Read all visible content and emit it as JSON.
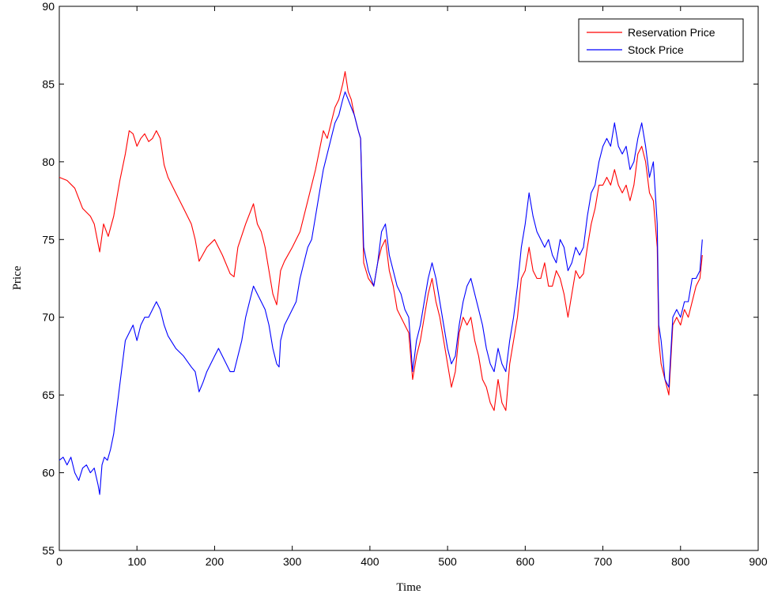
{
  "chart_data": {
    "type": "line",
    "title": "",
    "xlabel": "Time",
    "ylabel": "Price",
    "xlim": [
      0,
      900
    ],
    "ylim": [
      55,
      90
    ],
    "xticks": [
      0,
      100,
      200,
      300,
      400,
      500,
      600,
      700,
      800,
      900
    ],
    "yticks": [
      55,
      60,
      65,
      70,
      75,
      80,
      85,
      90
    ],
    "xtick_labels": [
      "0",
      "100",
      "200",
      "300",
      "400",
      "500",
      "600",
      "700",
      "800",
      "900"
    ],
    "ytick_labels": [
      "55",
      "60",
      "65",
      "70",
      "75",
      "80",
      "85",
      "90"
    ],
    "grid": false,
    "legend_position": "top-right",
    "series": [
      {
        "name": "Reservation Price",
        "color": "#ff0000",
        "x": [
          0,
          10,
          20,
          30,
          40,
          45,
          52,
          57,
          63,
          70,
          78,
          85,
          90,
          95,
          100,
          105,
          110,
          115,
          120,
          125,
          130,
          135,
          140,
          150,
          160,
          170,
          175,
          180,
          190,
          200,
          210,
          220,
          225,
          230,
          240,
          250,
          255,
          260,
          265,
          270,
          275,
          280,
          285,
          290,
          300,
          310,
          320,
          330,
          340,
          345,
          350,
          355,
          360,
          365,
          368,
          372,
          376,
          380,
          385,
          388,
          392,
          398,
          405,
          410,
          415,
          420,
          425,
          430,
          435,
          440,
          445,
          450,
          455,
          460,
          465,
          470,
          475,
          480,
          485,
          490,
          495,
          500,
          505,
          510,
          515,
          520,
          525,
          530,
          535,
          540,
          545,
          550,
          555,
          560,
          565,
          570,
          575,
          580,
          585,
          590,
          595,
          600,
          605,
          610,
          615,
          620,
          625,
          630,
          635,
          640,
          645,
          650,
          655,
          660,
          665,
          670,
          675,
          680,
          685,
          690,
          695,
          700,
          705,
          710,
          715,
          720,
          725,
          730,
          735,
          740,
          745,
          750,
          755,
          760,
          765,
          770,
          772,
          775,
          780,
          785,
          790,
          795,
          800,
          805,
          810,
          815,
          820,
          825,
          828
        ],
        "y": [
          79.0,
          78.8,
          78.3,
          77.0,
          76.5,
          76.0,
          74.2,
          76.0,
          75.2,
          76.5,
          78.8,
          80.5,
          82.0,
          81.8,
          81.0,
          81.5,
          81.8,
          81.3,
          81.5,
          82.0,
          81.5,
          79.8,
          79.0,
          78.0,
          77.0,
          76.0,
          75.0,
          73.6,
          74.5,
          75.0,
          74.0,
          72.8,
          72.6,
          74.5,
          76.0,
          77.3,
          76.0,
          75.5,
          74.5,
          73.0,
          71.5,
          70.8,
          73.0,
          73.6,
          74.5,
          75.5,
          77.5,
          79.5,
          82.0,
          81.5,
          82.5,
          83.5,
          84.0,
          85.0,
          85.8,
          84.5,
          84.0,
          83.0,
          82.0,
          81.5,
          73.5,
          72.5,
          72.0,
          73.5,
          74.5,
          75.0,
          73.0,
          72.0,
          70.5,
          70.0,
          69.5,
          69.0,
          66.0,
          67.5,
          68.5,
          70.0,
          71.5,
          72.5,
          71.0,
          70.0,
          68.5,
          67.0,
          65.5,
          66.5,
          69.0,
          70.0,
          69.5,
          70.0,
          68.5,
          67.5,
          66.0,
          65.5,
          64.5,
          64.0,
          66.0,
          64.5,
          64.0,
          67.0,
          68.5,
          70.0,
          72.5,
          73.0,
          74.5,
          73.0,
          72.5,
          72.5,
          73.5,
          72.0,
          72.0,
          73.0,
          72.5,
          71.5,
          70.0,
          71.5,
          73.0,
          72.5,
          72.8,
          74.5,
          76.0,
          77.0,
          78.5,
          78.5,
          79.0,
          78.5,
          79.5,
          78.5,
          78.0,
          78.5,
          77.5,
          78.5,
          80.5,
          81.0,
          80.0,
          78.0,
          77.5,
          74.5,
          68.5,
          67.0,
          66.0,
          65.0,
          69.5,
          70.0,
          69.5,
          70.5,
          70.0,
          71.0,
          72.0,
          72.5,
          74.0
        ]
      },
      {
        "name": "Stock Price",
        "color": "#0000ff",
        "x": [
          0,
          5,
          10,
          15,
          20,
          25,
          30,
          35,
          40,
          45,
          50,
          52,
          55,
          58,
          62,
          66,
          70,
          75,
          80,
          85,
          90,
          95,
          100,
          105,
          110,
          115,
          120,
          125,
          130,
          135,
          140,
          150,
          160,
          170,
          175,
          180,
          185,
          190,
          195,
          200,
          205,
          210,
          215,
          220,
          225,
          230,
          235,
          240,
          245,
          250,
          255,
          260,
          265,
          270,
          275,
          280,
          283,
          285,
          290,
          295,
          300,
          305,
          310,
          315,
          320,
          325,
          330,
          335,
          340,
          345,
          350,
          355,
          360,
          365,
          368,
          372,
          376,
          380,
          385,
          388,
          392,
          398,
          405,
          410,
          415,
          420,
          425,
          430,
          435,
          440,
          445,
          450,
          455,
          460,
          465,
          470,
          475,
          480,
          485,
          490,
          495,
          500,
          505,
          510,
          515,
          520,
          525,
          530,
          535,
          540,
          545,
          550,
          555,
          560,
          565,
          570,
          575,
          580,
          585,
          590,
          595,
          600,
          605,
          610,
          615,
          620,
          625,
          630,
          635,
          640,
          645,
          650,
          655,
          660,
          665,
          670,
          675,
          680,
          685,
          690,
          695,
          700,
          705,
          710,
          715,
          720,
          725,
          730,
          735,
          740,
          745,
          750,
          755,
          760,
          765,
          770,
          772,
          775,
          780,
          785,
          790,
          795,
          800,
          805,
          810,
          815,
          820,
          825,
          828
        ],
        "y": [
          60.8,
          61.0,
          60.5,
          61.0,
          60.0,
          59.5,
          60.3,
          60.5,
          60.0,
          60.3,
          59.2,
          58.6,
          60.5,
          61.0,
          60.8,
          61.5,
          62.5,
          64.5,
          66.5,
          68.5,
          69.0,
          69.5,
          68.5,
          69.5,
          70.0,
          70.0,
          70.5,
          71.0,
          70.5,
          69.5,
          68.8,
          68.0,
          67.5,
          66.8,
          66.5,
          65.2,
          65.8,
          66.5,
          67.0,
          67.5,
          68.0,
          67.5,
          67.0,
          66.5,
          66.5,
          67.5,
          68.5,
          70.0,
          71.0,
          72.0,
          71.5,
          71.0,
          70.5,
          69.5,
          68.0,
          67.0,
          66.8,
          68.5,
          69.5,
          70.0,
          70.5,
          71.0,
          72.5,
          73.5,
          74.5,
          75.0,
          76.5,
          78.0,
          79.5,
          80.5,
          81.5,
          82.5,
          83.0,
          84.0,
          84.5,
          84.0,
          83.5,
          83.0,
          82.0,
          81.5,
          74.5,
          73.0,
          72.0,
          73.5,
          75.5,
          76.0,
          74.0,
          73.0,
          72.0,
          71.5,
          70.5,
          70.0,
          66.5,
          68.5,
          69.5,
          71.0,
          72.5,
          73.5,
          72.5,
          71.0,
          69.5,
          68.0,
          67.0,
          67.5,
          69.5,
          71.0,
          72.0,
          72.5,
          71.5,
          70.5,
          69.5,
          68.0,
          67.0,
          66.5,
          68.0,
          67.0,
          66.5,
          68.5,
          70.0,
          72.0,
          74.5,
          76.0,
          78.0,
          76.5,
          75.5,
          75.0,
          74.5,
          75.0,
          74.0,
          73.5,
          75.0,
          74.5,
          73.0,
          73.5,
          74.5,
          74.0,
          74.5,
          76.5,
          78.0,
          78.5,
          80.0,
          81.0,
          81.5,
          81.0,
          82.5,
          81.0,
          80.5,
          81.0,
          79.5,
          80.0,
          81.5,
          82.5,
          81.0,
          79.0,
          80.0,
          76.0,
          69.5,
          68.5,
          66.0,
          65.5,
          70.0,
          70.5,
          70.0,
          71.0,
          71.0,
          72.5,
          72.5,
          73.0,
          75.0
        ]
      }
    ]
  }
}
